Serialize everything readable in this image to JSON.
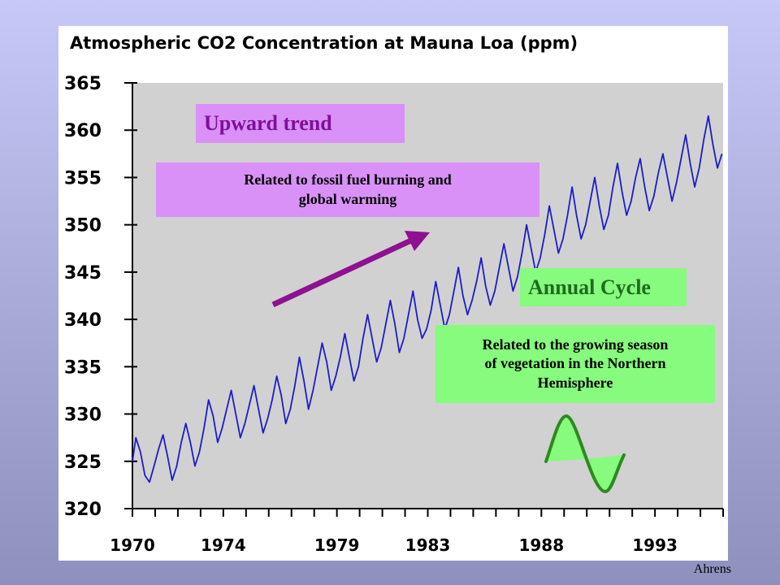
{
  "chart_data": {
    "type": "line",
    "title": "Atmospheric CO2 Concentration at Mauna Loa (ppm)",
    "xlabel": "",
    "ylabel": "",
    "xlim": [
      1970,
      1996
    ],
    "ylim": [
      320,
      365
    ],
    "x_ticks": [
      "1970",
      "1974",
      "1979",
      "1983",
      "1988",
      "1993"
    ],
    "x_tick_values": [
      1970,
      1974,
      1979,
      1983,
      1988,
      1993
    ],
    "y_ticks": [
      320,
      325,
      330,
      335,
      340,
      345,
      350,
      355,
      360,
      365
    ],
    "grid": false,
    "series": [
      {
        "name": "",
        "color": "#1c1cc8",
        "points": [
          [
            1970.0,
            325.0
          ],
          [
            1970.15,
            327.5
          ],
          [
            1970.35,
            326.0
          ],
          [
            1970.55,
            323.5
          ],
          [
            1970.75,
            322.8
          ],
          [
            1970.95,
            324.5
          ],
          [
            1971.15,
            326.3
          ],
          [
            1971.35,
            327.8
          ],
          [
            1971.55,
            325.5
          ],
          [
            1971.75,
            323.0
          ],
          [
            1971.95,
            324.5
          ],
          [
            1972.15,
            327.0
          ],
          [
            1972.35,
            329.0
          ],
          [
            1972.55,
            327.0
          ],
          [
            1972.75,
            324.5
          ],
          [
            1972.95,
            326.0
          ],
          [
            1973.15,
            328.5
          ],
          [
            1973.35,
            331.5
          ],
          [
            1973.55,
            329.8
          ],
          [
            1973.75,
            327.0
          ],
          [
            1973.95,
            328.5
          ],
          [
            1974.15,
            330.5
          ],
          [
            1974.35,
            332.5
          ],
          [
            1974.55,
            330.0
          ],
          [
            1974.75,
            327.5
          ],
          [
            1974.95,
            329.0
          ],
          [
            1975.15,
            331.0
          ],
          [
            1975.35,
            333.0
          ],
          [
            1975.55,
            330.5
          ],
          [
            1975.75,
            328.0
          ],
          [
            1975.95,
            329.5
          ],
          [
            1976.15,
            331.5
          ],
          [
            1976.35,
            334.0
          ],
          [
            1976.55,
            332.0
          ],
          [
            1976.75,
            329.0
          ],
          [
            1976.95,
            330.5
          ],
          [
            1977.15,
            333.0
          ],
          [
            1977.35,
            336.0
          ],
          [
            1977.55,
            333.5
          ],
          [
            1977.75,
            330.5
          ],
          [
            1977.95,
            332.5
          ],
          [
            1978.15,
            335.0
          ],
          [
            1978.35,
            337.5
          ],
          [
            1978.55,
            335.5
          ],
          [
            1978.75,
            332.5
          ],
          [
            1978.95,
            334.0
          ],
          [
            1979.15,
            336.0
          ],
          [
            1979.35,
            338.5
          ],
          [
            1979.55,
            336.0
          ],
          [
            1979.75,
            333.5
          ],
          [
            1979.95,
            335.0
          ],
          [
            1980.15,
            338.0
          ],
          [
            1980.35,
            340.5
          ],
          [
            1980.55,
            338.0
          ],
          [
            1980.75,
            335.5
          ],
          [
            1980.95,
            337.0
          ],
          [
            1981.15,
            339.5
          ],
          [
            1981.35,
            342.0
          ],
          [
            1981.55,
            339.5
          ],
          [
            1981.75,
            336.5
          ],
          [
            1981.95,
            338.0
          ],
          [
            1982.15,
            340.5
          ],
          [
            1982.35,
            343.0
          ],
          [
            1982.55,
            340.0
          ],
          [
            1982.75,
            338.0
          ],
          [
            1982.95,
            339.0
          ],
          [
            1983.15,
            341.0
          ],
          [
            1983.35,
            344.0
          ],
          [
            1983.55,
            341.5
          ],
          [
            1983.75,
            339.0
          ],
          [
            1983.95,
            340.5
          ],
          [
            1984.15,
            343.0
          ],
          [
            1984.35,
            345.5
          ],
          [
            1984.55,
            342.5
          ],
          [
            1984.75,
            340.5
          ],
          [
            1984.95,
            342.0
          ],
          [
            1985.15,
            344.0
          ],
          [
            1985.35,
            346.5
          ],
          [
            1985.55,
            343.5
          ],
          [
            1985.75,
            341.5
          ],
          [
            1985.95,
            343.0
          ],
          [
            1986.15,
            345.5
          ],
          [
            1986.35,
            348.0
          ],
          [
            1986.55,
            345.5
          ],
          [
            1986.75,
            343.0
          ],
          [
            1986.95,
            344.5
          ],
          [
            1987.15,
            347.0
          ],
          [
            1987.35,
            350.0
          ],
          [
            1987.55,
            347.5
          ],
          [
            1987.75,
            345.0
          ],
          [
            1987.95,
            346.5
          ],
          [
            1988.15,
            349.0
          ],
          [
            1988.35,
            352.0
          ],
          [
            1988.55,
            349.5
          ],
          [
            1988.75,
            347.0
          ],
          [
            1988.95,
            348.5
          ],
          [
            1989.15,
            351.0
          ],
          [
            1989.35,
            354.0
          ],
          [
            1989.55,
            351.0
          ],
          [
            1989.75,
            348.5
          ],
          [
            1989.95,
            350.0
          ],
          [
            1990.15,
            352.5
          ],
          [
            1990.35,
            355.0
          ],
          [
            1990.55,
            352.0
          ],
          [
            1990.75,
            349.5
          ],
          [
            1990.95,
            351.0
          ],
          [
            1991.15,
            354.0
          ],
          [
            1991.35,
            356.5
          ],
          [
            1991.55,
            353.5
          ],
          [
            1991.75,
            351.0
          ],
          [
            1991.95,
            352.5
          ],
          [
            1992.15,
            355.0
          ],
          [
            1992.35,
            357.0
          ],
          [
            1992.55,
            354.0
          ],
          [
            1992.75,
            351.5
          ],
          [
            1992.95,
            353.0
          ],
          [
            1993.15,
            355.5
          ],
          [
            1993.35,
            357.5
          ],
          [
            1993.55,
            355.0
          ],
          [
            1993.75,
            352.5
          ],
          [
            1993.95,
            354.5
          ],
          [
            1994.15,
            357.0
          ],
          [
            1994.35,
            359.5
          ],
          [
            1994.55,
            356.5
          ],
          [
            1994.75,
            354.0
          ],
          [
            1994.95,
            356.0
          ],
          [
            1995.15,
            359.0
          ],
          [
            1995.35,
            361.5
          ],
          [
            1995.55,
            358.5
          ],
          [
            1995.75,
            356.0
          ],
          [
            1995.95,
            357.5
          ]
        ]
      }
    ]
  },
  "annotations": {
    "trend_title": "Upward trend",
    "trend_text_line1": "Related to fossil fuel burning and",
    "trend_text_line2": "global warming",
    "cycle_title": "Annual Cycle",
    "cycle_text_line1": "Related to the growing season",
    "cycle_text_line2": "of vegetation in the Northern",
    "cycle_text_line3": "Hemisphere"
  },
  "colors": {
    "plot_background": "#d1d1d1",
    "series_line": "#1c1cc8",
    "arrow": "#8e1192",
    "trend_box": "#d991f8",
    "cycle_box": "#86fb7d",
    "sine_stroke": "#2d8a1f"
  },
  "credit": "Ahrens"
}
